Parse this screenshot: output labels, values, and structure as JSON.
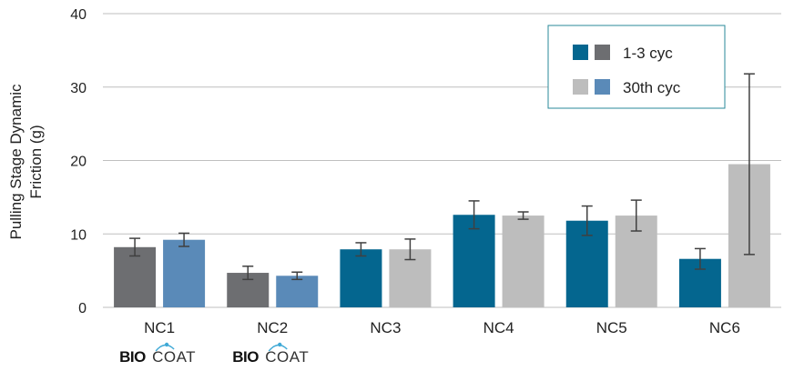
{
  "chart_data": {
    "type": "bar",
    "ylabel": [
      "Pulling Stage Dynamic",
      "Friction (g)"
    ],
    "ylim": [
      0,
      40
    ],
    "yticks": [
      0,
      10,
      20,
      30,
      40
    ],
    "grid": true,
    "legend_position": "top-right",
    "categories": [
      "NC1",
      "NC2",
      "NC3",
      "NC4",
      "NC5",
      "NC6"
    ],
    "series": [
      {
        "name": "1-3 cyc",
        "values": [
          8.2,
          4.7,
          7.9,
          12.6,
          11.8,
          6.6
        ],
        "errors": [
          1.2,
          0.9,
          0.9,
          1.9,
          2.0,
          1.4
        ],
        "colors": [
          "#6d6e71",
          "#6d6e71",
          "#04668f",
          "#04668f",
          "#04668f",
          "#04668f"
        ]
      },
      {
        "name": "30th cyc",
        "values": [
          9.2,
          4.3,
          7.9,
          12.5,
          12.5,
          19.5
        ],
        "errors": [
          0.9,
          0.5,
          1.4,
          0.5,
          2.1,
          12.3
        ],
        "colors": [
          "#5a8ab8",
          "#5a8ab8",
          "#bdbdbd",
          "#bdbdbd",
          "#bdbdbd",
          "#bdbdbd"
        ]
      }
    ],
    "legend": [
      {
        "label": "1-3 cyc",
        "swatches": [
          "#04668f",
          "#6d6e71"
        ]
      },
      {
        "label": "30th cyc",
        "swatches": [
          "#bdbdbd",
          "#5a8ab8"
        ]
      }
    ],
    "logo_categories": [
      "NC1",
      "NC2"
    ],
    "logo": {
      "bio": "BIO",
      "coat": "COAT"
    }
  },
  "colors": {
    "grid": "#bfbfbf",
    "legend_border": "#2a8a9a",
    "error_bar": "#404040"
  }
}
